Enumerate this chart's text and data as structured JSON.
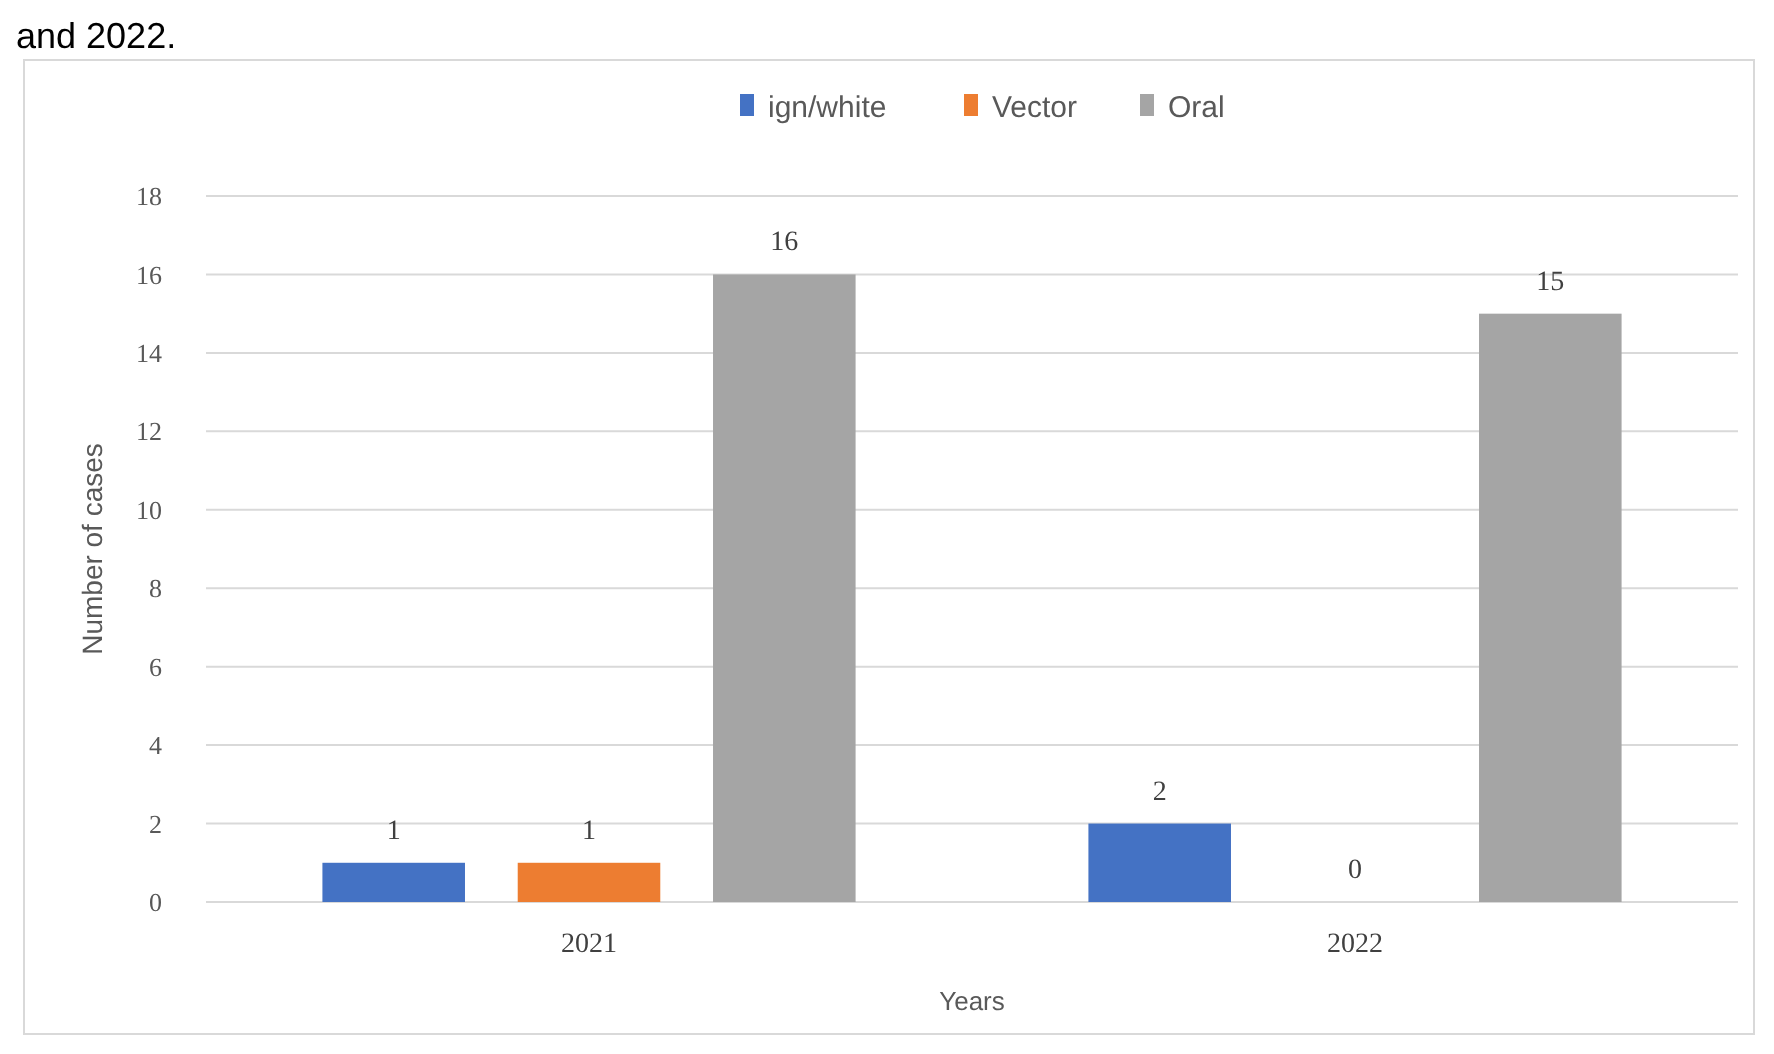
{
  "chart_data": {
    "type": "bar",
    "xlabel": "Years",
    "ylabel": "Number of cases",
    "annotations": [
      "and 2022."
    ],
    "categories": [
      "2021",
      "2022"
    ],
    "series": [
      {
        "name": "ign/white",
        "color": "#4472c4",
        "values": [
          1,
          2
        ]
      },
      {
        "name": "Vector",
        "color": "#ed7d31",
        "values": [
          1,
          0
        ]
      },
      {
        "name": "Oral",
        "color": "#a5a5a5",
        "values": [
          16,
          15
        ]
      }
    ],
    "ylim": [
      0,
      18
    ],
    "yticks": [
      0,
      2,
      4,
      6,
      8,
      10,
      12,
      14,
      16,
      18
    ],
    "grid": "y",
    "legend": "top",
    "data_labels": true
  }
}
